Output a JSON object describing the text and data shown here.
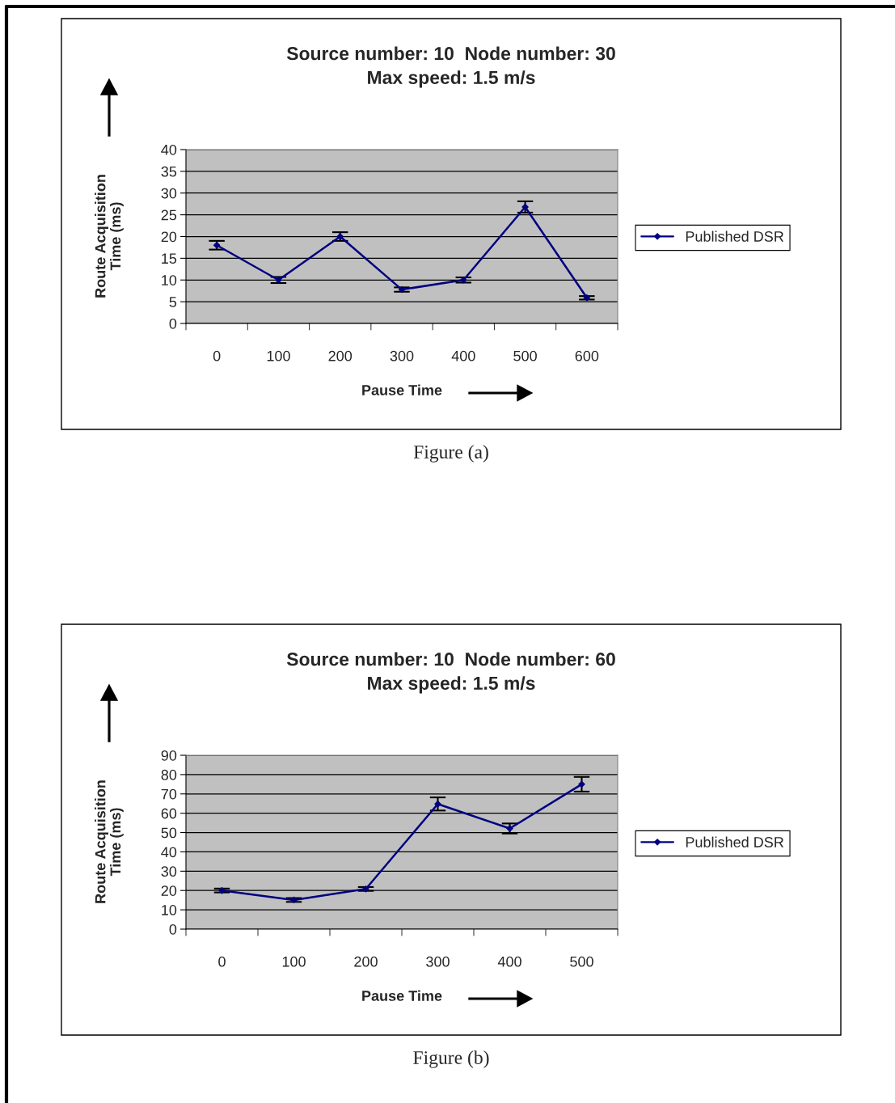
{
  "chart_data": [
    {
      "type": "line",
      "title": "Source number: 10  Node number: 30\nMax speed: 1.5 m/s",
      "xlabel": "Pause Time",
      "ylabel": "Route Acquisition\nTime (ms)",
      "categories": [
        "0",
        "100",
        "200",
        "300",
        "400",
        "500",
        "600"
      ],
      "series": [
        {
          "name": "Published DSR",
          "color": "#000080",
          "values": [
            18,
            10,
            20,
            7.8,
            10,
            26.8,
            5.9
          ],
          "errors": [
            1,
            0.7,
            1,
            0.5,
            0.6,
            1.3,
            0.4
          ]
        }
      ],
      "ylim": [
        0,
        40
      ],
      "yticks": [
        0,
        5,
        10,
        15,
        20,
        25,
        30,
        35,
        40
      ],
      "grid": "y",
      "legend": "right",
      "marker": "diamond",
      "line_style": "solid",
      "annotations": [
        "Figure (a)"
      ]
    },
    {
      "type": "line",
      "title": "Source number: 10  Node number: 60\nMax speed: 1.5 m/s",
      "xlabel": "Pause Time",
      "ylabel": "Route Acquisition\nTime (ms)",
      "categories": [
        "0",
        "100",
        "200",
        "300",
        "400",
        "500"
      ],
      "series": [
        {
          "name": "Published DSR",
          "color": "#000080",
          "values": [
            20,
            15.1,
            20.8,
            64.8,
            52.1,
            75
          ],
          "errors": [
            1,
            1,
            1,
            3.4,
            2.6,
            3.8
          ]
        }
      ],
      "ylim": [
        0,
        90
      ],
      "yticks": [
        0,
        10,
        20,
        30,
        40,
        50,
        60,
        70,
        80,
        90
      ],
      "grid": "y",
      "legend": "right",
      "marker": "diamond",
      "line_style": "solid",
      "annotations": [
        "Figure (b)"
      ]
    }
  ]
}
